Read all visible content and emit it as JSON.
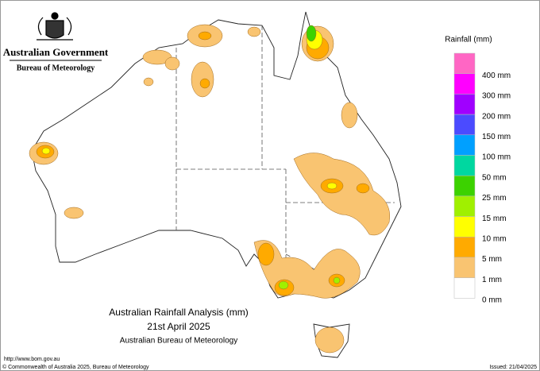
{
  "header": {
    "government": "Australian Government",
    "agency": "Bureau of Meteorology"
  },
  "legend": {
    "title": "Rainfall (mm)",
    "colors": [
      "#ff66c4",
      "#ff00ff",
      "#a000ff",
      "#4b4bff",
      "#00a0ff",
      "#00d7a0",
      "#3cd200",
      "#a0f000",
      "#ffff00",
      "#ffaa00",
      "#f9c471",
      "#ffffff"
    ],
    "labels": [
      "400 mm",
      "300 mm",
      "200 mm",
      "150 mm",
      "100 mm",
      "50 mm",
      "25 mm",
      "15 mm",
      "10 mm",
      "5 mm",
      "1 mm",
      "0 mm"
    ]
  },
  "title": {
    "line1": "Australian Rainfall Analysis (mm)",
    "line2": "21st April 2025",
    "line3": "Australian Bureau of Meteorology"
  },
  "footer": {
    "url": "http://www.bom.gov.au",
    "copyright": "© Commonwealth of Australia 2025, Bureau of Meteorology",
    "issued": "Issued: 21/04/2025"
  }
}
